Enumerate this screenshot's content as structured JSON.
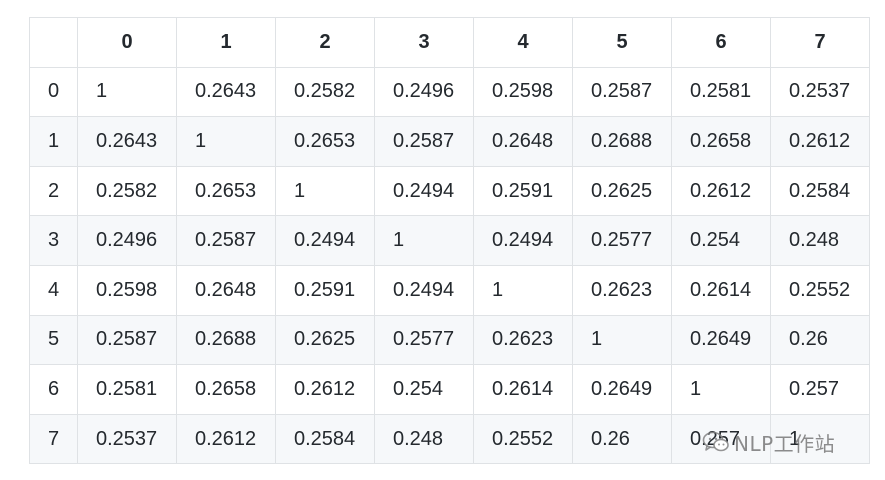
{
  "table": {
    "header": [
      "",
      "0",
      "1",
      "2",
      "3",
      "4",
      "5",
      "6",
      "7"
    ],
    "rows": [
      [
        "0",
        "1",
        "0.2643",
        "0.2582",
        "0.2496",
        "0.2598",
        "0.2587",
        "0.2581",
        "0.2537"
      ],
      [
        "1",
        "0.2643",
        "1",
        "0.2653",
        "0.2587",
        "0.2648",
        "0.2688",
        "0.2658",
        "0.2612"
      ],
      [
        "2",
        "0.2582",
        "0.2653",
        "1",
        "0.2494",
        "0.2591",
        "0.2625",
        "0.2612",
        "0.2584"
      ],
      [
        "3",
        "0.2496",
        "0.2587",
        "0.2494",
        "1",
        "0.2494",
        "0.2577",
        "0.254",
        "0.248"
      ],
      [
        "4",
        "0.2598",
        "0.2648",
        "0.2591",
        "0.2494",
        "1",
        "0.2623",
        "0.2614",
        "0.2552"
      ],
      [
        "5",
        "0.2587",
        "0.2688",
        "0.2625",
        "0.2577",
        "0.2623",
        "1",
        "0.2649",
        "0.26"
      ],
      [
        "6",
        "0.2581",
        "0.2658",
        "0.2612",
        "0.254",
        "0.2614",
        "0.2649",
        "1",
        "0.257"
      ],
      [
        "7",
        "0.2537",
        "0.2612",
        "0.2584",
        "0.248",
        "0.2552",
        "0.26",
        "0.257",
        "1"
      ]
    ]
  },
  "watermark": {
    "icon": "wechat-icon",
    "text": "NLP工作站"
  },
  "colors": {
    "border": "#dfe2e5",
    "stripe": "#f6f8fa",
    "text": "#24292e"
  }
}
